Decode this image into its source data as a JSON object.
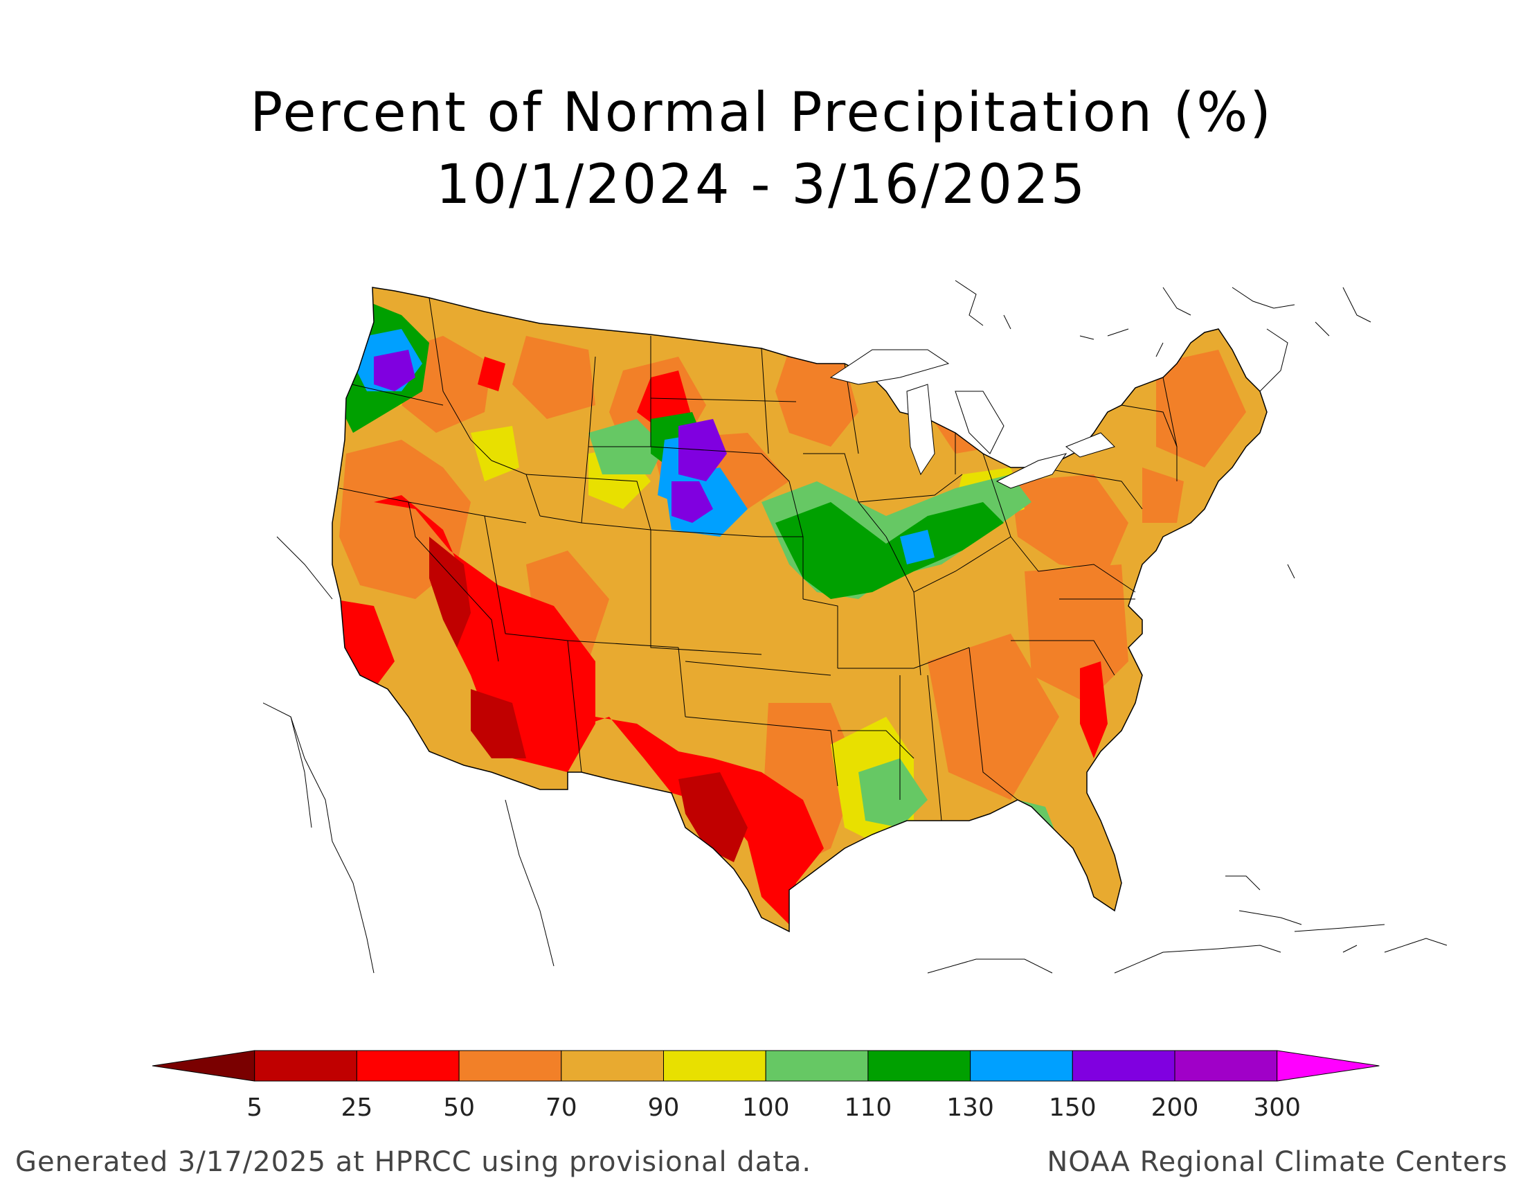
{
  "title": {
    "line1": "Percent of Normal Precipitation (%)",
    "line2": "10/1/2024 - 3/16/2025"
  },
  "legend": {
    "bins": [
      {
        "color": "#7a0000"
      },
      {
        "color": "#c00000"
      },
      {
        "color": "#ff0000"
      },
      {
        "color": "#f28028"
      },
      {
        "color": "#e8aa30"
      },
      {
        "color": "#e8e000"
      },
      {
        "color": "#66c864"
      },
      {
        "color": "#00a000"
      },
      {
        "color": "#00a0ff"
      },
      {
        "color": "#8000e0"
      },
      {
        "color": "#a000c8"
      },
      {
        "color": "#ff00ff"
      }
    ],
    "ticks": [
      "5",
      "25",
      "50",
      "70",
      "90",
      "100",
      "110",
      "130",
      "150",
      "200",
      "300"
    ]
  },
  "footer": {
    "left": "Generated 3/17/2025 at HPRCC using provisional data.",
    "right": "NOAA Regional Climate Centers"
  }
}
